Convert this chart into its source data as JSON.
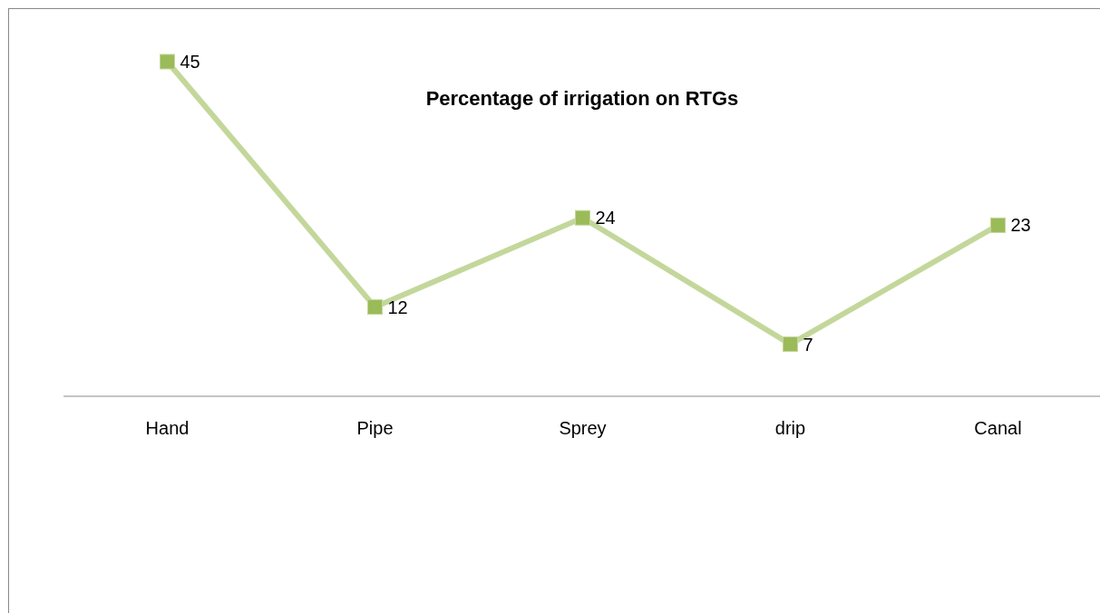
{
  "chart_data": {
    "type": "line",
    "title": "Percentage of irrigation on RTGs",
    "categories": [
      "Hand",
      "Pipe",
      "Sprey",
      "drip",
      "Canal"
    ],
    "series": [
      {
        "color": "#c4d79b",
        "values": [
          45,
          12,
          24,
          7,
          23
        ]
      }
    ],
    "data_labels": true,
    "marker": "square"
  }
}
